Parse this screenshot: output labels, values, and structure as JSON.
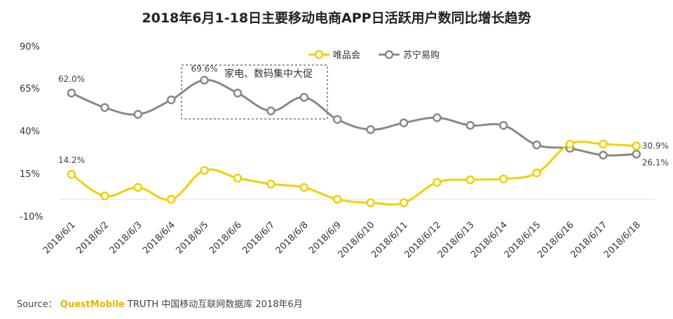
{
  "chart_data": {
    "type": "line",
    "title": "2018年6月1-18日主要移动电商APP日活跃用户数同比增长趋势",
    "categories": [
      "2018/6/1",
      "2018/6/2",
      "2018/6/3",
      "2018/6/4",
      "2018/6/5",
      "2018/6/6",
      "2018/6/7",
      "2018/6/8",
      "2018/6/9",
      "2018/6/10",
      "2018/6/11",
      "2018/6/12",
      "2018/6/13",
      "2018/6/14",
      "2018/6/15",
      "2018/6/16",
      "2018/6/17",
      "2018/6/18"
    ],
    "yticks": [
      "90%",
      "65%",
      "40%",
      "15%",
      "-10%"
    ],
    "ylim": [
      -10,
      90
    ],
    "series": [
      {
        "name": "唯品会",
        "color": "#f0d000",
        "values": [
          14.2,
          1.5,
          6.5,
          -0.5,
          16.5,
          12.0,
          8.5,
          6.5,
          -0.5,
          -2.5,
          -2.5,
          9.5,
          11.0,
          11.5,
          15.0,
          32.0,
          32.0,
          30.9
        ]
      },
      {
        "name": "苏宁易购",
        "color": "#888888",
        "values": [
          62.0,
          53.5,
          49.5,
          58.0,
          69.6,
          62.0,
          51.5,
          59.5,
          46.5,
          40.5,
          44.5,
          47.5,
          43.0,
          43.0,
          31.5,
          29.5,
          25.5,
          26.1
        ]
      }
    ],
    "labels": {
      "s0_first": "14.2%",
      "s0_last": "30.9%",
      "s1_first": "62.0%",
      "s1_peak": "69.6%",
      "s1_last": "26.1%"
    },
    "annotation": "家电、数码集中大促",
    "legend_position": "top-right"
  },
  "source": {
    "prefix": "Source：",
    "brand": "QuestMobile",
    "rest": " TRUTH 中国移动互联网数据库 2018年6月"
  }
}
